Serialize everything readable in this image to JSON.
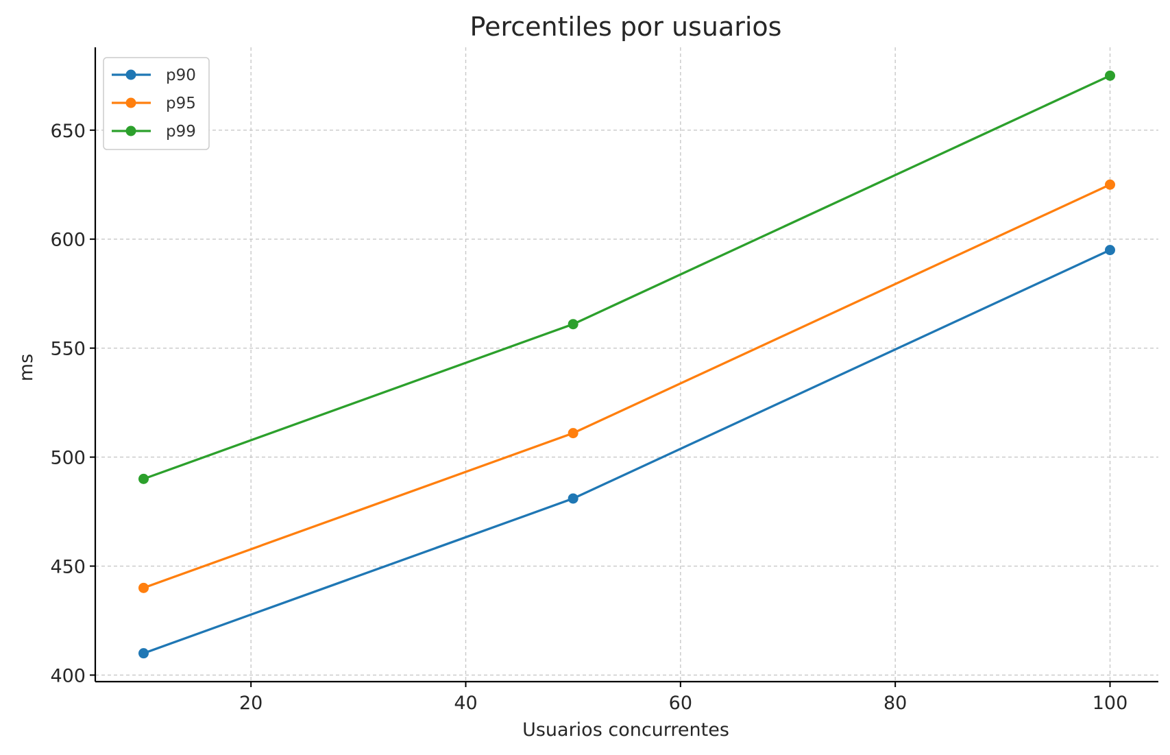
{
  "chart_data": {
    "type": "line",
    "title": "Percentiles por usuarios",
    "xlabel": "Usuarios concurrentes",
    "ylabel": "ms",
    "x": [
      10,
      50,
      100
    ],
    "xlim": [
      5.5,
      104.5
    ],
    "ylim": [
      397,
      688
    ],
    "xticks": [
      20,
      40,
      60,
      80,
      100
    ],
    "yticks": [
      400,
      450,
      500,
      550,
      600,
      650
    ],
    "grid": true,
    "legend_position": "top-left",
    "series": [
      {
        "name": "p90",
        "color": "#1f77b4",
        "values": [
          410,
          481,
          595
        ]
      },
      {
        "name": "p95",
        "color": "#ff7f0e",
        "values": [
          440,
          511,
          625
        ]
      },
      {
        "name": "p99",
        "color": "#2ca02c",
        "values": [
          490,
          561,
          675
        ]
      }
    ]
  }
}
